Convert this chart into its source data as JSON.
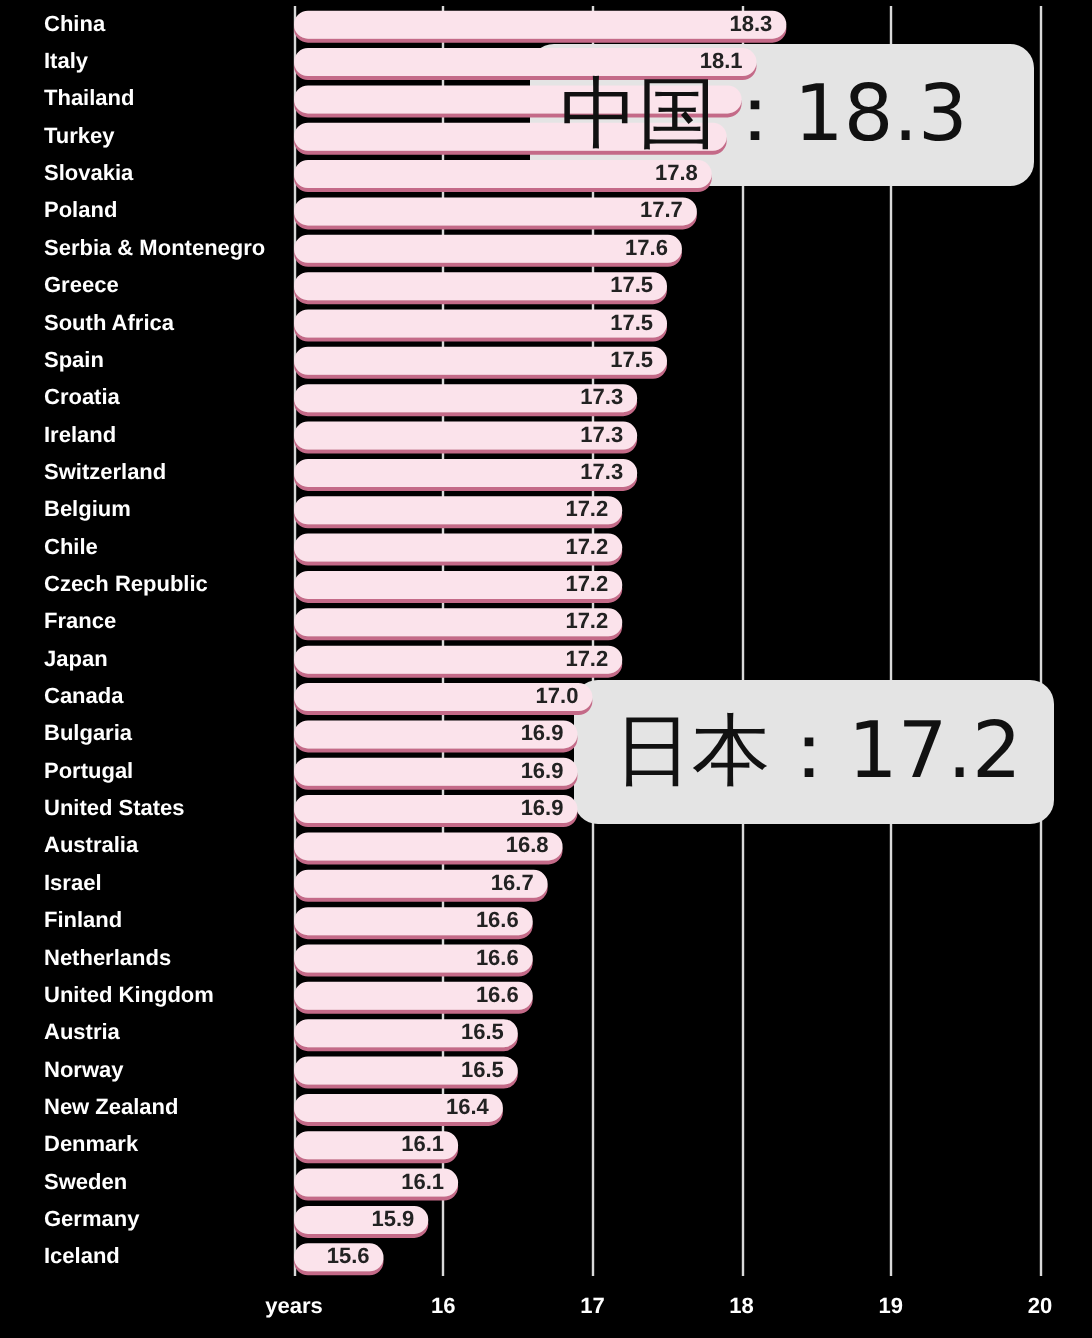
{
  "chart_data": {
    "type": "bar",
    "orientation": "horizontal",
    "categories": [
      "China",
      "Italy",
      "Thailand",
      "Turkey",
      "Slovakia",
      "Poland",
      "Serbia & Montenegro",
      "Greece",
      "South Africa",
      "Spain",
      "Croatia",
      "Ireland",
      "Switzerland",
      "Belgium",
      "Chile",
      "Czech Republic",
      "France",
      "Japan",
      "Canada",
      "Bulgaria",
      "Portugal",
      "United States",
      "Australia",
      "Israel",
      "Finland",
      "Netherlands",
      "United Kingdom",
      "Austria",
      "Norway",
      "New Zealand",
      "Denmark",
      "Sweden",
      "Germany",
      "Iceland"
    ],
    "values": [
      18.3,
      18.1,
      18.0,
      17.9,
      17.8,
      17.7,
      17.6,
      17.5,
      17.5,
      17.5,
      17.3,
      17.3,
      17.3,
      17.2,
      17.2,
      17.2,
      17.2,
      17.2,
      17.0,
      16.9,
      16.9,
      16.9,
      16.8,
      16.7,
      16.6,
      16.6,
      16.6,
      16.5,
      16.5,
      16.4,
      16.1,
      16.1,
      15.9,
      15.6
    ],
    "value_labels": [
      "18.3",
      "18.1",
      null,
      null,
      "17.8",
      "17.7",
      "17.6",
      "17.5",
      "17.5",
      "17.5",
      "17.3",
      "17.3",
      "17.3",
      "17.2",
      "17.2",
      "17.2",
      "17.2",
      "17.2",
      "17.0",
      "16.9",
      "16.9",
      "16.9",
      "16.8",
      "16.7",
      "16.6",
      "16.6",
      "16.6",
      "16.5",
      "16.5",
      "16.4",
      "16.1",
      "16.1",
      "15.9",
      "15.6"
    ],
    "color": "#fbe3eb",
    "xlim": [
      15,
      20
    ],
    "xticks": [
      {
        "value": 15,
        "label": "years"
      },
      16,
      17,
      18,
      19,
      20
    ],
    "grid": "x",
    "annotations": [
      "中国：18.3",
      "日本：17.2"
    ]
  }
}
